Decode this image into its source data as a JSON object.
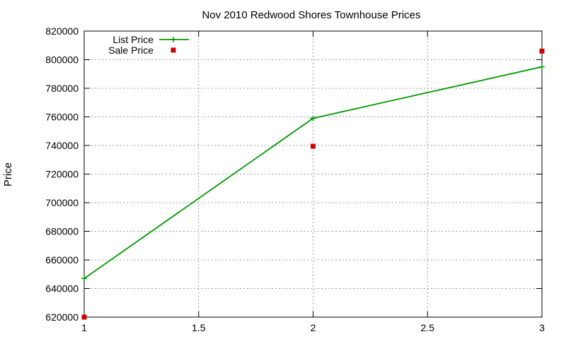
{
  "chart_data": {
    "type": "line",
    "title": "Nov 2010 Redwood Shores Townhouse Prices",
    "xlabel": "",
    "ylabel": "Price",
    "xlim": [
      1,
      3
    ],
    "ylim": [
      620000,
      820000
    ],
    "x_ticks": [
      "1",
      "1.5",
      "2",
      "2.5",
      "3"
    ],
    "y_ticks": [
      "620000",
      "640000",
      "660000",
      "680000",
      "700000",
      "720000",
      "740000",
      "760000",
      "780000",
      "800000",
      "820000"
    ],
    "grid": true,
    "legend_position": "top-left",
    "series": [
      {
        "name": "List Price",
        "style": "linespoints",
        "marker": "plus",
        "color": "#009900",
        "x": [
          1,
          2,
          3
        ],
        "y": [
          647000,
          759000,
          795000
        ]
      },
      {
        "name": "Sale Price",
        "style": "points",
        "marker": "square",
        "color": "#cc0000",
        "x": [
          1,
          2,
          3
        ],
        "y": [
          620000,
          739500,
          806000
        ]
      }
    ]
  }
}
